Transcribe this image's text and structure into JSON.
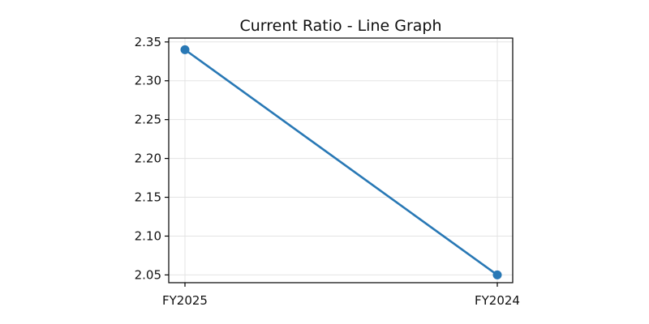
{
  "chart_data": {
    "type": "line",
    "title": "Current Ratio - Line Graph",
    "xlabel": "",
    "ylabel": "",
    "categories": [
      "FY2025",
      "FY2024"
    ],
    "series": [
      {
        "values": [
          2.34,
          2.05
        ],
        "color": "#2878b5"
      }
    ],
    "ylim": [
      2.04,
      2.355
    ],
    "yticks": [
      "2.05",
      "2.10",
      "2.15",
      "2.20",
      "2.25",
      "2.30",
      "2.35"
    ],
    "grid": true
  }
}
